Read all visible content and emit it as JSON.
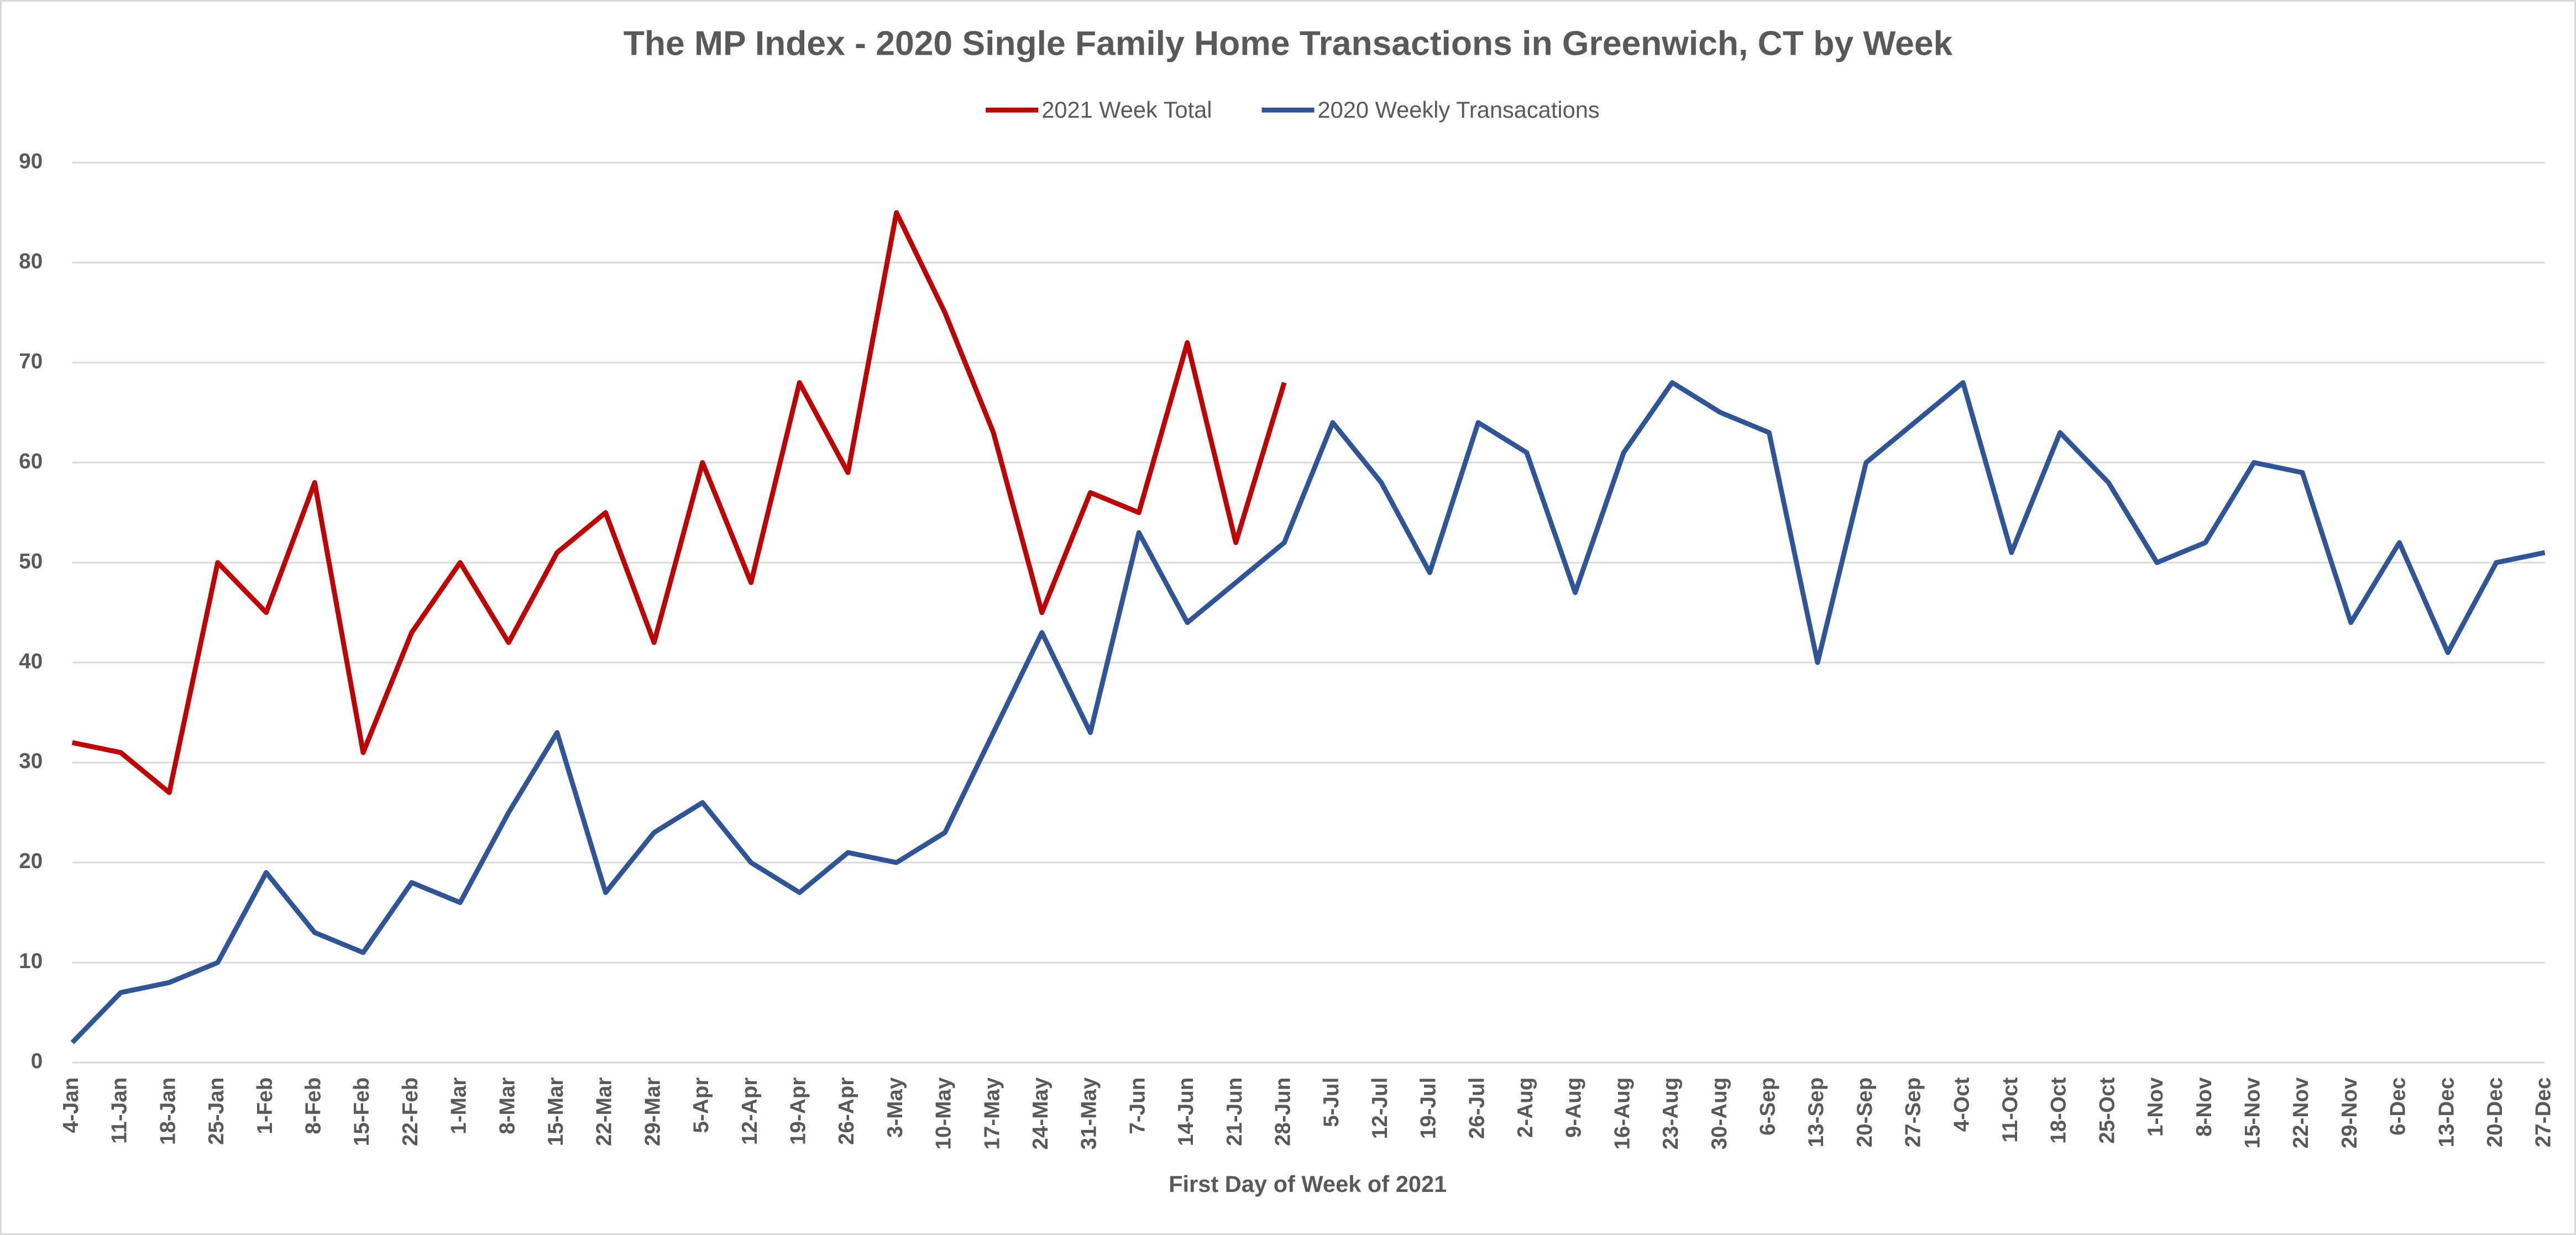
{
  "chart_data": {
    "type": "line",
    "title": "The MP Index - 2020 Single Family Home Transactions in Greenwich, CT by Week",
    "x_label": "First Day of Week of 2021",
    "categories": [
      "4-Jan",
      "11-Jan",
      "18-Jan",
      "25-Jan",
      "1-Feb",
      "8-Feb",
      "15-Feb",
      "22-Feb",
      "1-Mar",
      "8-Mar",
      "15-Mar",
      "22-Mar",
      "29-Mar",
      "5-Apr",
      "12-Apr",
      "19-Apr",
      "26-Apr",
      "3-May",
      "10-May",
      "17-May",
      "24-May",
      "31-May",
      "7-Jun",
      "14-Jun",
      "21-Jun",
      "28-Jun",
      "5-Jul",
      "12-Jul",
      "19-Jul",
      "26-Jul",
      "2-Aug",
      "9-Aug",
      "16-Aug",
      "23-Aug",
      "30-Aug",
      "6-Sep",
      "13-Sep",
      "20-Sep",
      "27-Sep",
      "4-Oct",
      "11-Oct",
      "18-Oct",
      "25-Oct",
      "1-Nov",
      "8-Nov",
      "15-Nov",
      "22-Nov",
      "29-Nov",
      "6-Dec",
      "13-Dec",
      "20-Dec",
      "27-Dec"
    ],
    "series": [
      {
        "name": "2021 Week Total",
        "color": "#c00000",
        "values": [
          32,
          31,
          27,
          50,
          45,
          58,
          31,
          43,
          50,
          42,
          51,
          55,
          42,
          60,
          48,
          68,
          59,
          85,
          75,
          63,
          45,
          57,
          55,
          72,
          52,
          68,
          null,
          null,
          null,
          null,
          null,
          null,
          null,
          null,
          null,
          null,
          null,
          null,
          null,
          null,
          null,
          null,
          null,
          null,
          null,
          null,
          null,
          null,
          null,
          null,
          null,
          null
        ]
      },
      {
        "name": "2020 Weekly Transacations",
        "color": "#2f5597",
        "values": [
          2,
          7,
          8,
          10,
          19,
          13,
          11,
          18,
          16,
          25,
          33,
          17,
          23,
          26,
          20,
          17,
          21,
          20,
          23,
          33,
          43,
          33,
          53,
          44,
          48,
          52,
          64,
          58,
          49,
          64,
          61,
          47,
          61,
          68,
          65,
          63,
          40,
          60,
          64,
          68,
          51,
          63,
          58,
          50,
          52,
          60,
          59,
          44,
          52,
          41,
          50,
          51
        ]
      }
    ],
    "ylim": [
      0,
      90
    ],
    "yticks": [
      0,
      10,
      20,
      30,
      40,
      50,
      60,
      70,
      80,
      90
    ],
    "grid": true,
    "legend": "top"
  }
}
